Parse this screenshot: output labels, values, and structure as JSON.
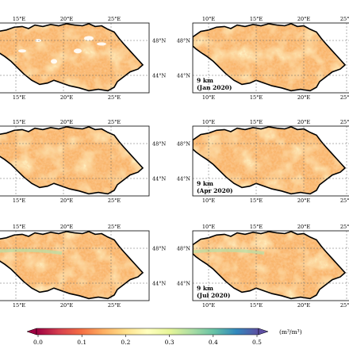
{
  "panels": [
    {
      "id": "r1c1",
      "label_line1": "",
      "label_line2": "",
      "row": 0,
      "col": 0
    },
    {
      "id": "r1c2",
      "label_line1": "9 km",
      "label_line2": "(Jan 2020)",
      "row": 0,
      "col": 1
    },
    {
      "id": "r2c1",
      "label_line1": "",
      "label_line2": "",
      "row": 1,
      "col": 0
    },
    {
      "id": "r2c2",
      "label_line1": "9 km",
      "label_line2": "(Apr 2020)",
      "row": 1,
      "col": 1
    },
    {
      "id": "r3c1",
      "label_line1": "",
      "label_line2": "",
      "row": 2,
      "col": 0
    },
    {
      "id": "r3c2",
      "label_line1": "9 km",
      "label_line2": "(Jul 2020)",
      "row": 2,
      "col": 1
    }
  ],
  "axes": {
    "left_col_lon_ticks": [
      "15°E",
      "20°E",
      "25°E"
    ],
    "right_col_lon_ticks": [
      "10°E",
      "15°E",
      "20°E",
      "25°E"
    ],
    "lat_ticks": [
      "48°N",
      "44°N"
    ]
  },
  "colorbar": {
    "ticks": [
      "0.0",
      "0.1",
      "0.2",
      "0.3",
      "0.4",
      "0.5"
    ],
    "unit_label": "(m³/m³)",
    "colors": [
      "#9e0142",
      "#d53e4f",
      "#f46d43",
      "#fdae61",
      "#fee08b",
      "#ffffbf",
      "#e6f598",
      "#abdda4",
      "#66c2a5",
      "#3288bd",
      "#5e4fa2"
    ]
  },
  "style": {
    "frame": "#000000",
    "grid": "#666666"
  }
}
